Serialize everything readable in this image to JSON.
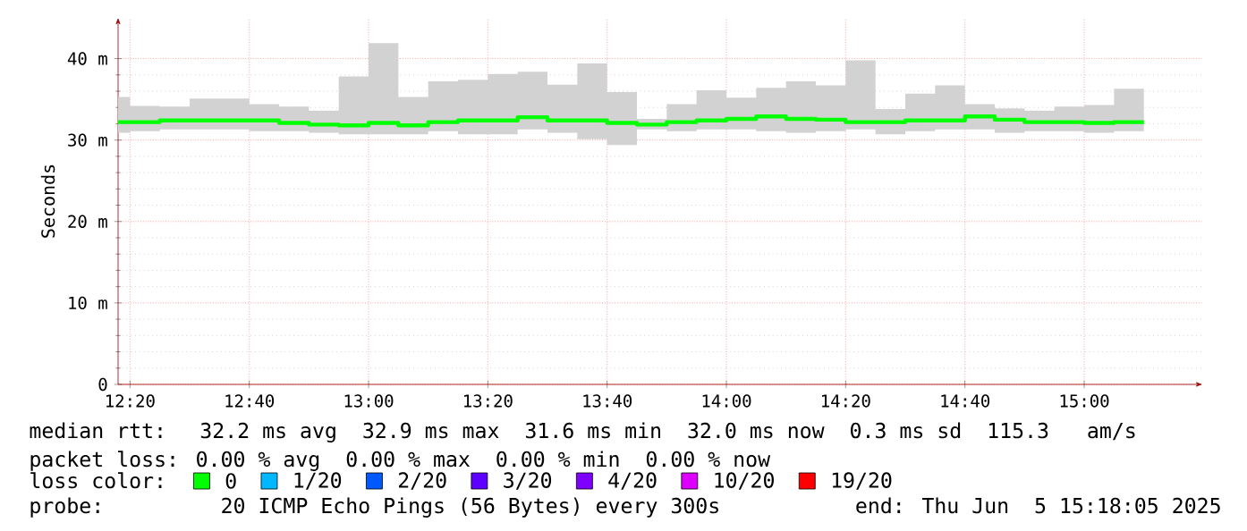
{
  "chart_data": {
    "type": "step",
    "ylabel": "Seconds",
    "legend_title": "loss color:",
    "legend": "bottom",
    "grid": true,
    "x": [
      12.3,
      12.3333,
      12.4167,
      12.5,
      12.5833,
      12.6667,
      12.75,
      12.8333,
      12.9167,
      13,
      13.0833,
      13.1667,
      13.25,
      13.3333,
      13.4167,
      13.5,
      13.5833,
      13.6667,
      13.75,
      13.8333,
      13.9167,
      14,
      14.0833,
      14.1667,
      14.25,
      14.3333,
      14.4167,
      14.5,
      14.5833,
      14.6667,
      14.75,
      14.8333,
      14.9167,
      15,
      15.0833,
      15.1667
    ],
    "xlim": [
      12.3,
      15.33
    ],
    "xticks": [
      {
        "value": 12.3333,
        "label": "12:20"
      },
      {
        "value": 12.6667,
        "label": "12:40"
      },
      {
        "value": 13,
        "label": "13:00"
      },
      {
        "value": 13.3333,
        "label": "13:20"
      },
      {
        "value": 13.6667,
        "label": "13:40"
      },
      {
        "value": 14,
        "label": "14:00"
      },
      {
        "value": 14.3333,
        "label": "14:20"
      },
      {
        "value": 14.6667,
        "label": "14:40"
      },
      {
        "value": 15,
        "label": "15:00"
      }
    ],
    "ylim": [
      0,
      45
    ],
    "yticks": [
      0,
      {
        "value": 10,
        "label": "10 m"
      },
      {
        "value": 20,
        "label": "20 m"
      },
      {
        "value": 30,
        "label": "30 m"
      },
      {
        "value": 40,
        "label": "40 m"
      }
    ],
    "series": [
      {
        "name": "0",
        "color": "#00ff00",
        "values": [
          32.2,
          32.2,
          32.4,
          32.4,
          32.4,
          32.4,
          32.1,
          31.9,
          31.8,
          32.1,
          31.8,
          32.2,
          32.4,
          32.4,
          32.8,
          32.4,
          32.4,
          32.1,
          31.9,
          32.2,
          32.4,
          32.6,
          32.9,
          32.6,
          32.5,
          32.2,
          32.2,
          32.4,
          32.4,
          32.9,
          32.5,
          32.2,
          32.2,
          32.1,
          32.2,
          32.2
        ],
        "lower": [
          30.9,
          31.1,
          31.3,
          31.3,
          31.3,
          31.1,
          31.1,
          30.9,
          30.7,
          30.7,
          30.7,
          31.1,
          30.7,
          30.7,
          31.3,
          30.9,
          30.1,
          29.4,
          31.3,
          31.1,
          31.3,
          31.3,
          31.1,
          30.9,
          31.1,
          31.3,
          30.7,
          31.1,
          31.3,
          31.3,
          30.9,
          31.1,
          31.1,
          30.9,
          31.1,
          31.1
        ],
        "upper": [
          35.3,
          34.2,
          34.1,
          35.1,
          35.1,
          34.4,
          34.1,
          33.6,
          37.8,
          41.9,
          35.3,
          37.2,
          37.4,
          38.1,
          38.4,
          36.8,
          39.4,
          35.9,
          32.6,
          34.4,
          36.1,
          35.2,
          36.4,
          37.2,
          36.7,
          39.8,
          33.8,
          35.7,
          36.7,
          34.4,
          33.9,
          33.6,
          34.1,
          34.3,
          36.3,
          36.3
        ]
      },
      {
        "name": "1/20",
        "color": "#00b8ff",
        "values": [
          null,
          null,
          null,
          null,
          null,
          null,
          null,
          null,
          null,
          null,
          null,
          null,
          null,
          null,
          null,
          null,
          null,
          null,
          null,
          null,
          null,
          null,
          null,
          null,
          null,
          null,
          null,
          null,
          null,
          null,
          null,
          null,
          null,
          null,
          null,
          null
        ]
      },
      {
        "name": "2/20",
        "color": "#0059ff",
        "values": [
          null,
          null,
          null,
          null,
          null,
          null,
          null,
          null,
          null,
          null,
          null,
          null,
          null,
          null,
          null,
          null,
          null,
          null,
          null,
          null,
          null,
          null,
          null,
          null,
          null,
          null,
          null,
          null,
          null,
          null,
          null,
          null,
          null,
          null,
          null,
          null
        ]
      },
      {
        "name": "3/20",
        "color": "#5e00ff",
        "values": [
          null,
          null,
          null,
          null,
          null,
          null,
          null,
          null,
          null,
          null,
          null,
          null,
          null,
          null,
          null,
          null,
          null,
          null,
          null,
          null,
          null,
          null,
          null,
          null,
          null,
          null,
          null,
          null,
          null,
          null,
          null,
          null,
          null,
          null,
          null,
          null
        ]
      },
      {
        "name": "4/20",
        "color": "#7e00ff",
        "values": [
          null,
          null,
          null,
          null,
          null,
          null,
          null,
          null,
          null,
          null,
          null,
          null,
          null,
          null,
          null,
          null,
          null,
          null,
          null,
          null,
          null,
          null,
          null,
          null,
          null,
          null,
          null,
          null,
          null,
          null,
          null,
          null,
          null,
          null,
          null,
          null
        ]
      },
      {
        "name": "10/20",
        "color": "#dd00ff",
        "values": [
          null,
          null,
          null,
          null,
          null,
          null,
          null,
          null,
          null,
          null,
          null,
          null,
          null,
          null,
          null,
          null,
          null,
          null,
          null,
          null,
          null,
          null,
          null,
          null,
          null,
          null,
          null,
          null,
          null,
          null,
          null,
          null,
          null,
          null,
          null,
          null
        ]
      },
      {
        "name": "19/20",
        "color": "#ff0000",
        "values": [
          null,
          null,
          null,
          null,
          null,
          null,
          null,
          null,
          null,
          null,
          null,
          null,
          null,
          null,
          null,
          null,
          null,
          null,
          null,
          null,
          null,
          null,
          null,
          null,
          null,
          null,
          null,
          null,
          null,
          null,
          null,
          null,
          null,
          null,
          null,
          null
        ]
      }
    ],
    "annotations": [
      "median rtt:  32.2 ms avg  32.9 ms max  31.6 ms min  32.0 ms now  0.3 ms sd  115.3   am/s",
      "packet loss: 0.00 % avg  0.00 % max  0.00 % min  0.00 % now",
      "probe:       20 ICMP Echo Pings (56 Bytes) every 300s",
      "end: Thu Jun  5 15:18:05 2025"
    ]
  }
}
